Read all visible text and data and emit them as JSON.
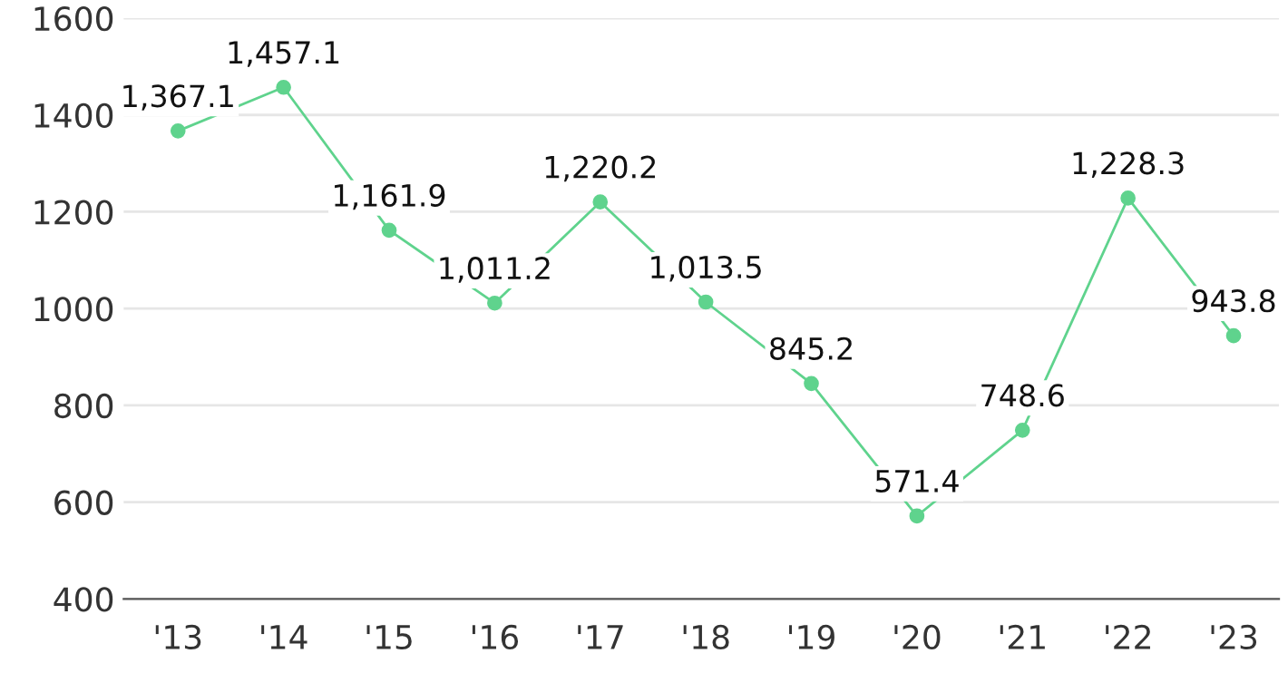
{
  "chart_data": {
    "type": "line",
    "categories": [
      "'13",
      "'14",
      "'15",
      "'16",
      "'17",
      "'18",
      "'19",
      "'20",
      "'21",
      "'22",
      "'23"
    ],
    "series": [
      {
        "color": "#5fd38d",
        "values": [
          1367.1,
          1457.1,
          1161.9,
          1011.2,
          1220.2,
          1013.5,
          845.2,
          571.4,
          748.6,
          1228.3,
          943.8
        ],
        "value_labels": [
          "1,367.1",
          "1,457.1",
          "1,161.9",
          "1,011.2",
          "1,220.2",
          "1,013.5",
          "845.2",
          "571.4",
          "748.6",
          "1,228.3",
          "943.8"
        ]
      }
    ],
    "ylim": [
      400,
      1600
    ],
    "yticks": [
      400,
      600,
      800,
      1000,
      1200,
      1400,
      1600
    ],
    "grid": "y",
    "marker": "circle",
    "line_style": "solid"
  }
}
